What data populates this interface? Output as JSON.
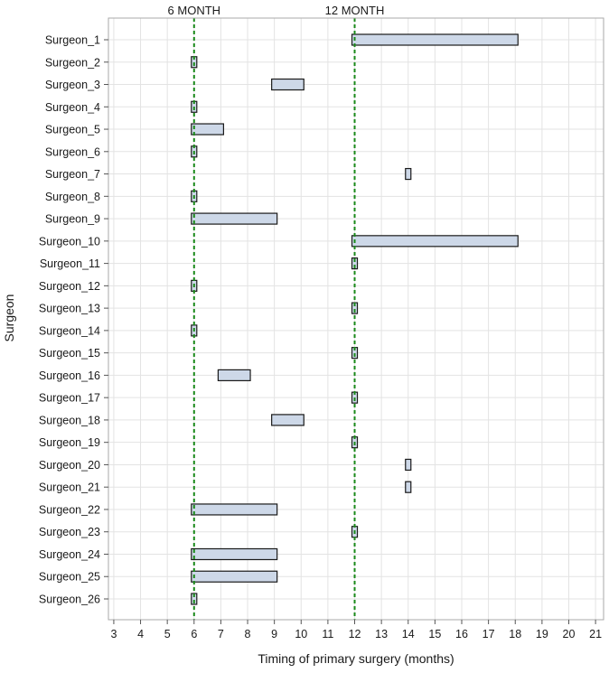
{
  "chart_data": {
    "type": "bar",
    "orientation": "horizontal-range",
    "title": "",
    "xlabel": "Timing of primary surgery (months)",
    "ylabel": "Surgeon",
    "xlim": [
      2.8,
      21.3
    ],
    "xticks": [
      3,
      4,
      5,
      6,
      7,
      8,
      9,
      10,
      11,
      12,
      13,
      14,
      15,
      16,
      17,
      18,
      19,
      20,
      21
    ],
    "grid": true,
    "colors": {
      "bar_fill": "#cdd8e8",
      "bar_edge": "#1a1a1a",
      "ref_line": "#1a8a1a",
      "grid": "#e3e3e3",
      "frame": "#aaaaaa"
    },
    "reference_lines": [
      {
        "x": 6,
        "label": "6 MONTH"
      },
      {
        "x": 12,
        "label": "12 MONTH"
      }
    ],
    "categories": [
      "Surgeon_1",
      "Surgeon_2",
      "Surgeon_3",
      "Surgeon_4",
      "Surgeon_5",
      "Surgeon_6",
      "Surgeon_7",
      "Surgeon_8",
      "Surgeon_9",
      "Surgeon_10",
      "Surgeon_11",
      "Surgeon_12",
      "Surgeon_13",
      "Surgeon_14",
      "Surgeon_15",
      "Surgeon_16",
      "Surgeon_17",
      "Surgeon_18",
      "Surgeon_19",
      "Surgeon_20",
      "Surgeon_21",
      "Surgeon_22",
      "Surgeon_23",
      "Surgeon_24",
      "Surgeon_25",
      "Surgeon_26"
    ],
    "ranges": [
      [
        12,
        18
      ],
      [
        6,
        6
      ],
      [
        9,
        10
      ],
      [
        6,
        6
      ],
      [
        6,
        7
      ],
      [
        6,
        6
      ],
      [
        14,
        14
      ],
      [
        6,
        6
      ],
      [
        6,
        9
      ],
      [
        12,
        18
      ],
      [
        12,
        12
      ],
      [
        6,
        6
      ],
      [
        12,
        12
      ],
      [
        6,
        6
      ],
      [
        12,
        12
      ],
      [
        7,
        8
      ],
      [
        12,
        12
      ],
      [
        9,
        10
      ],
      [
        12,
        12
      ],
      [
        14,
        14
      ],
      [
        14,
        14
      ],
      [
        6,
        9
      ],
      [
        12,
        12
      ],
      [
        6,
        9
      ],
      [
        6,
        9
      ],
      [
        6,
        6
      ]
    ]
  }
}
